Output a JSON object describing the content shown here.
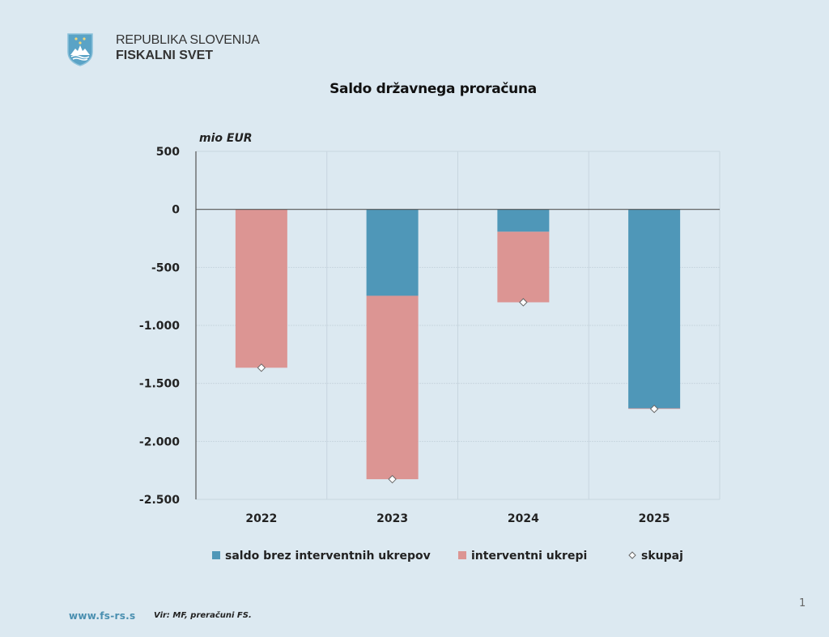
{
  "header": {
    "org_line1": "REPUBLIKA SLOVENIJA",
    "org_line2": "FISKALNI SVET",
    "logo_icon": "slovenian-coat-of-arms-icon"
  },
  "footer": {
    "url": "www.fs-rs.s",
    "source": "Vir: MF, preračuni FS.",
    "page_number": "1"
  },
  "colors": {
    "background": "#dce9f1",
    "series_base": "#4f97b8",
    "series_intervention": "#dc9593",
    "grid": "#c8d6df",
    "axis": "#555555"
  },
  "chart_data": {
    "type": "bar",
    "stacked": true,
    "title": "Saldo državnega proračuna",
    "ylabel": "mio EUR",
    "xlabel": "",
    "categories": [
      "2022",
      "2023",
      "2024",
      "2025"
    ],
    "series": [
      {
        "name": "saldo brez interventnih ukrepov",
        "kind": "bar",
        "values": [
          0,
          -745,
          -193,
          -1715
        ]
      },
      {
        "name": "interventni ukrepi",
        "kind": "bar",
        "values": [
          -1365,
          -1581,
          -608,
          -5
        ]
      },
      {
        "name": "skupaj",
        "kind": "marker",
        "values": [
          -1365,
          -2326,
          -801,
          -1720
        ]
      }
    ],
    "ylim": [
      -2500,
      500
    ],
    "yticks": [
      500,
      0,
      -500,
      -1000,
      -1500,
      -2000,
      -2500
    ],
    "ytick_labels": [
      "500",
      "0",
      "-500",
      "-1.000",
      "-1.500",
      "-2.000",
      "-2.500"
    ],
    "grid": true,
    "legend_position": "bottom"
  }
}
